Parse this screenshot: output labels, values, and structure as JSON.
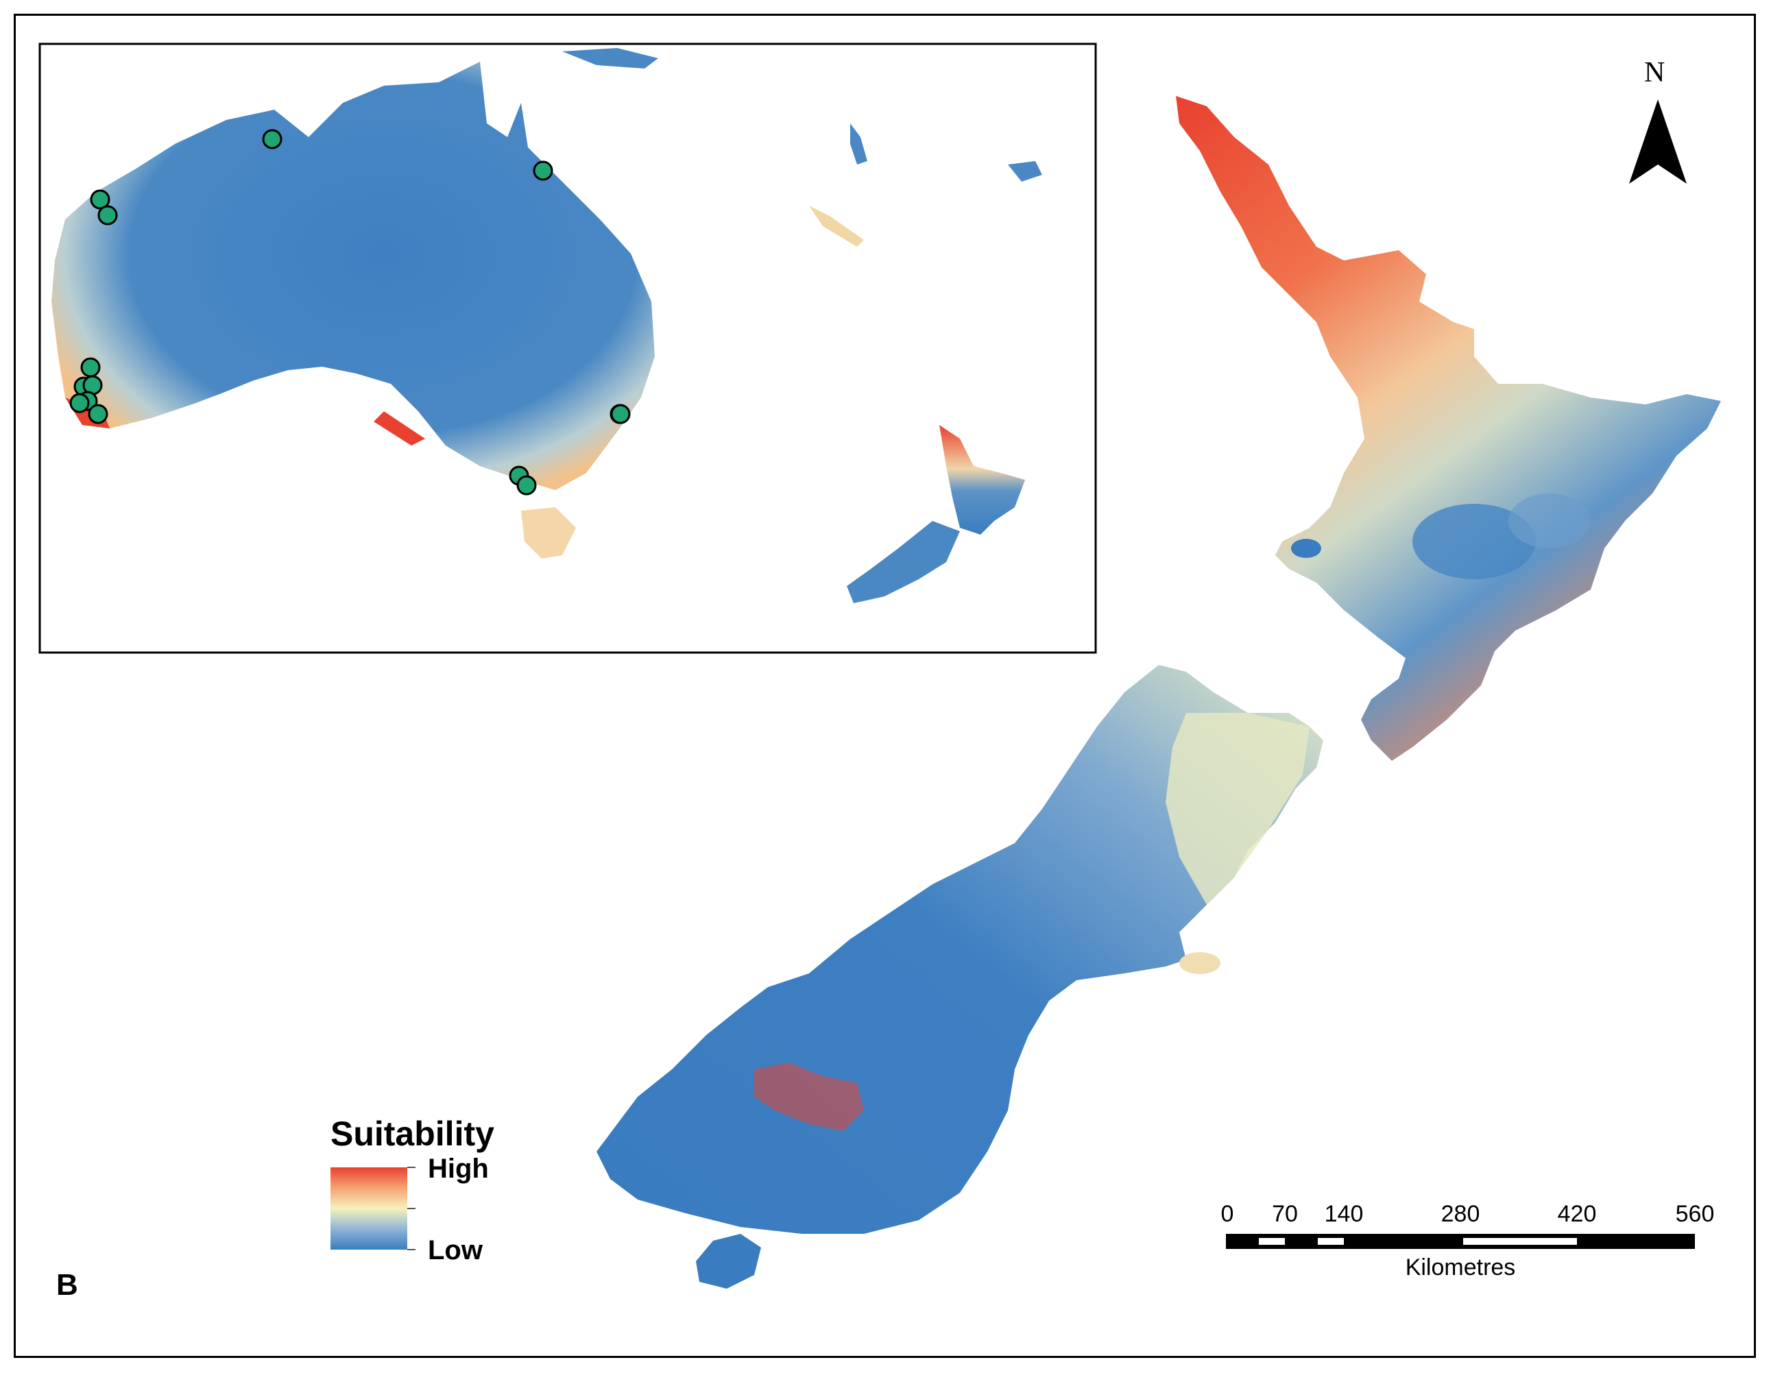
{
  "panel_label": "B",
  "north_arrow": {
    "label": "N"
  },
  "legend": {
    "title": "Suitability",
    "high_label": "High",
    "low_label": "Low",
    "colors": {
      "high": "#e8412f",
      "mid_high": "#f7a372",
      "mid": "#f5f1bd",
      "mid_low": "#8fb5d6",
      "low": "#3a7cc0"
    }
  },
  "scale_bar": {
    "unit": "Kilometres",
    "ticks": [
      "0",
      "70",
      "140",
      "280",
      "420",
      "560"
    ]
  },
  "inset": {
    "occurrence_points": 14,
    "point_color": "#1fa673"
  }
}
